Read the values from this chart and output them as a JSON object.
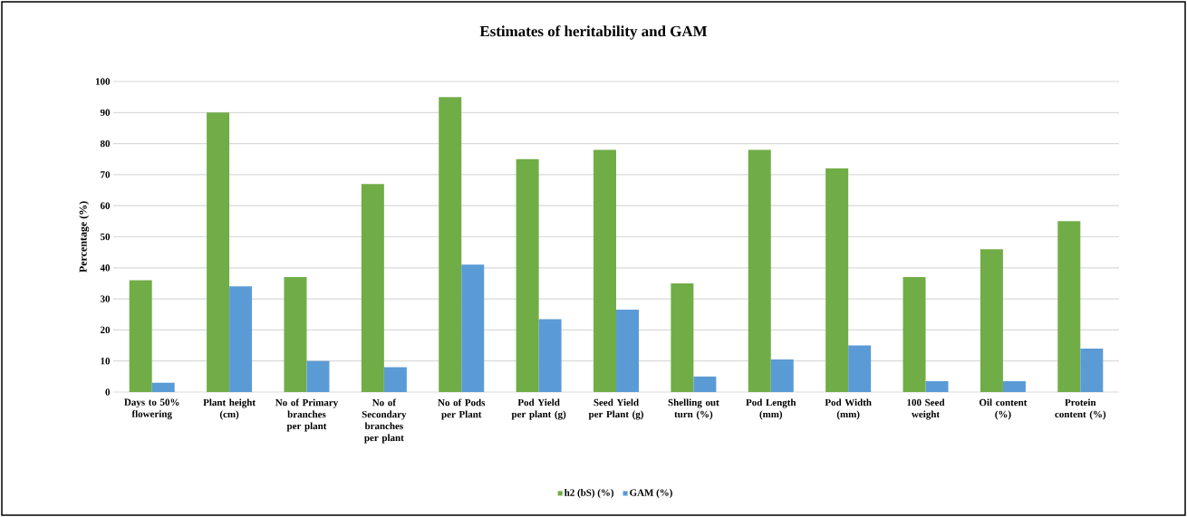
{
  "chart_data": {
    "type": "bar",
    "title": "Estimates of heritability and GAM",
    "ylabel": "Percentage (%)",
    "categories": [
      "Days to 50% flowering",
      "Plant height (cm)",
      "No of Primary branches per plant",
      "No of Secondary branches per plant",
      "No of Pods per Plant",
      "Pod Yield per plant (g)",
      "Seed Yield per Plant (g)",
      "Shelling out turn (%)",
      "Pod Length (mm)",
      "Pod Width (mm)",
      "100 Seed weight",
      "Oil content (%)",
      "Protein content (%)"
    ],
    "series": [
      {
        "name": "h2 (bS) (%)",
        "color": "#70ad47",
        "values": [
          36,
          90,
          37,
          67,
          95,
          75,
          78,
          35,
          78,
          72,
          37,
          46,
          55
        ]
      },
      {
        "name": "GAM (%)",
        "color": "#5b9bd5",
        "values": [
          3,
          34,
          10,
          8,
          41,
          23.5,
          26.5,
          5,
          10.5,
          15,
          3.5,
          3.5,
          14
        ]
      }
    ],
    "ylim": [
      0,
      100
    ],
    "yticks": [
      0,
      10,
      20,
      30,
      40,
      50,
      60,
      70,
      80,
      90,
      100
    ],
    "grid": "y",
    "legend": "bottom"
  }
}
